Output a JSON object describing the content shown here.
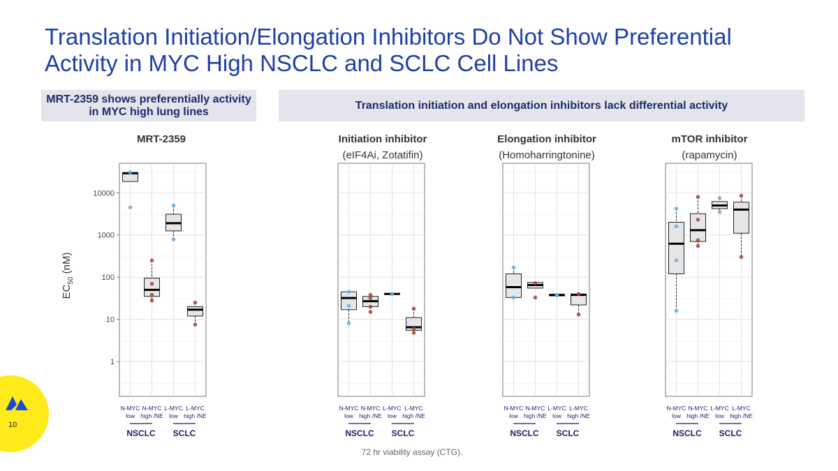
{
  "slide": {
    "title_line1": "Translation Initiation/Elongation Inhibitors Do Not Show Preferential",
    "title_line2": "Activity in MYC High NSCLC and SCLC Cell Lines",
    "banner_left": "MRT-2359 shows preferentially activity in MYC high lung lines",
    "banner_right": "Translation initiation and elongation inhibitors lack differential activity",
    "footnote": "72 hr viability assay (CTG).",
    "page_number": "10",
    "y_axis_label_main": "EC",
    "y_axis_label_sub": "50",
    "y_axis_label_unit": " (nM)"
  },
  "panels": [
    {
      "title": "MRT-2359",
      "subtitle": ""
    },
    {
      "title": "Initiation inhibitor",
      "subtitle": "(eIF4Ai, Zotatifin)"
    },
    {
      "title": "Elongation inhibitor",
      "subtitle": "(Homoharringtonine)"
    },
    {
      "title": "mTOR inhibitor",
      "subtitle": "(rapamycin)"
    }
  ],
  "colors": {
    "title": "#1F3FA8",
    "low_points": "#6FAADB",
    "high_points": "#A0443A",
    "box_fill": "#E6E6E6",
    "group_label": "#1C1C6B",
    "logo_blue": "#1E4BD2",
    "logo_bg": "#FFEB1A"
  },
  "chart_data": [
    {
      "type": "box",
      "title": "MRT-2359",
      "y_scale": "log",
      "ylim": [
        0.15,
        50000
      ],
      "y_ticks": [
        1,
        10,
        100,
        1000,
        10000
      ],
      "y_tick_labels": [
        "1",
        "10",
        "100",
        "1000",
        "10000"
      ],
      "ylabel": "EC50 (nM)",
      "categories": [
        "N-MYC low",
        "N-MYC high /NE",
        "L-MYC low",
        "L-MYC high /NE"
      ],
      "category_line1": [
        "N-MYC",
        "N-MYC",
        "L-MYC",
        "L-MYC"
      ],
      "category_line2": [
        "low",
        "high /NE",
        "low",
        "high /NE"
      ],
      "groups": [
        {
          "label": "NSCLC",
          "categories": [
            0,
            1
          ]
        },
        {
          "label": "SCLC",
          "categories": [
            2,
            3
          ]
        }
      ],
      "boxes": [
        {
          "q1": 18500,
          "median": 29000,
          "q3": 30000,
          "whisker_low": 18500,
          "whisker_high": 30000,
          "points": [
            30500,
            4500
          ],
          "point_class": "low"
        },
        {
          "q1": 35,
          "median": 50,
          "q3": 95,
          "whisker_low": 28,
          "whisker_high": 250,
          "points": [
            250,
            70,
            38,
            28
          ],
          "point_class": "high"
        },
        {
          "q1": 1250,
          "median": 1900,
          "q3": 3100,
          "whisker_low": 780,
          "whisker_high": 5000,
          "points": [
            5000,
            780
          ],
          "point_class": "low"
        },
        {
          "q1": 12,
          "median": 17,
          "q3": 20,
          "whisker_low": 7.5,
          "whisker_high": 25,
          "points": [
            25,
            7.5
          ],
          "point_class": "high"
        }
      ]
    },
    {
      "type": "box",
      "title": "Initiation inhibitor",
      "y_scale": "log",
      "ylim": [
        0.15,
        50000
      ],
      "categories": [
        "N-MYC low",
        "N-MYC high /NE",
        "L-MYC low",
        "L-MYC high /NE"
      ],
      "category_line1": [
        "N-MYC",
        "N-MYC",
        "L-MYC",
        "L-MYC"
      ],
      "category_line2": [
        "low",
        "high /NE",
        "low",
        "high /NE"
      ],
      "groups": [
        {
          "label": "NSCLC",
          "categories": [
            0,
            1
          ]
        },
        {
          "label": "SCLC",
          "categories": [
            2,
            3
          ]
        }
      ],
      "boxes": [
        {
          "q1": 17,
          "median": 32,
          "q3": 45,
          "whisker_low": 8,
          "whisker_high": 45,
          "points": [
            45,
            21,
            8
          ],
          "point_class": "low"
        },
        {
          "q1": 20,
          "median": 27,
          "q3": 35,
          "whisker_low": 15,
          "whisker_high": 38,
          "points": [
            38,
            32,
            20,
            15
          ],
          "point_class": "high"
        },
        {
          "q1": 39,
          "median": 40,
          "q3": 41,
          "whisker_low": 39,
          "whisker_high": 41,
          "points": [
            40
          ],
          "point_class": "low"
        },
        {
          "q1": 5.5,
          "median": 6.5,
          "q3": 11,
          "whisker_low": 4.8,
          "whisker_high": 18,
          "points": [
            18,
            6,
            4.8
          ],
          "point_class": "high"
        }
      ]
    },
    {
      "type": "box",
      "title": "Elongation inhibitor",
      "y_scale": "log",
      "ylim": [
        0.15,
        50000
      ],
      "categories": [
        "N-MYC low",
        "N-MYC high /NE",
        "L-MYC low",
        "L-MYC high /NE"
      ],
      "category_line1": [
        "N-MYC",
        "N-MYC",
        "L-MYC",
        "L-MYC"
      ],
      "category_line2": [
        "low",
        "high /NE",
        "low",
        "high /NE"
      ],
      "groups": [
        {
          "label": "NSCLC",
          "categories": [
            0,
            1
          ]
        },
        {
          "label": "SCLC",
          "categories": [
            2,
            3
          ]
        }
      ],
      "boxes": [
        {
          "q1": 33,
          "median": 58,
          "q3": 120,
          "whisker_low": 33,
          "whisker_high": 170,
          "points": [
            170,
            33
          ],
          "point_class": "low"
        },
        {
          "q1": 55,
          "median": 65,
          "q3": 75,
          "whisker_low": 55,
          "whisker_high": 75,
          "points": [
            72,
            33
          ],
          "point_class": "high"
        },
        {
          "q1": 36,
          "median": 38,
          "q3": 39,
          "whisker_low": 36,
          "whisker_high": 39,
          "points": [
            38,
            37
          ],
          "point_class": "low"
        },
        {
          "q1": 22,
          "median": 38,
          "q3": 40,
          "whisker_low": 13,
          "whisker_high": 40,
          "points": [
            40,
            13
          ],
          "point_class": "high"
        }
      ]
    },
    {
      "type": "box",
      "title": "mTOR inhibitor",
      "y_scale": "log",
      "ylim": [
        0.15,
        50000
      ],
      "categories": [
        "N-MYC low",
        "N-MYC high /NE",
        "L-MYC low",
        "L-MYC high /NE"
      ],
      "category_line1": [
        "N-MYC",
        "N-MYC",
        "L-MYC",
        "L-MYC"
      ],
      "category_line2": [
        "low",
        "high /NE",
        "low",
        "high /NE"
      ],
      "groups": [
        {
          "label": "NSCLC",
          "categories": [
            0,
            1
          ]
        },
        {
          "label": "SCLC",
          "categories": [
            2,
            3
          ]
        }
      ],
      "boxes": [
        {
          "q1": 120,
          "median": 620,
          "q3": 2000,
          "whisker_low": 16,
          "whisker_high": 4200,
          "points": [
            4200,
            1600,
            250,
            16
          ],
          "point_class": "low"
        },
        {
          "q1": 700,
          "median": 1300,
          "q3": 3200,
          "whisker_low": 550,
          "whisker_high": 8000,
          "points": [
            8000,
            2300,
            750,
            550
          ],
          "point_class": "high"
        },
        {
          "q1": 4200,
          "median": 5000,
          "q3": 6200,
          "whisker_low": 3500,
          "whisker_high": 7500,
          "points": [
            7500,
            3500
          ],
          "point_class": "low"
        },
        {
          "q1": 1100,
          "median": 4000,
          "q3": 6000,
          "whisker_low": 300,
          "whisker_high": 8500,
          "points": [
            8500,
            300
          ],
          "point_class": "high"
        }
      ]
    }
  ]
}
